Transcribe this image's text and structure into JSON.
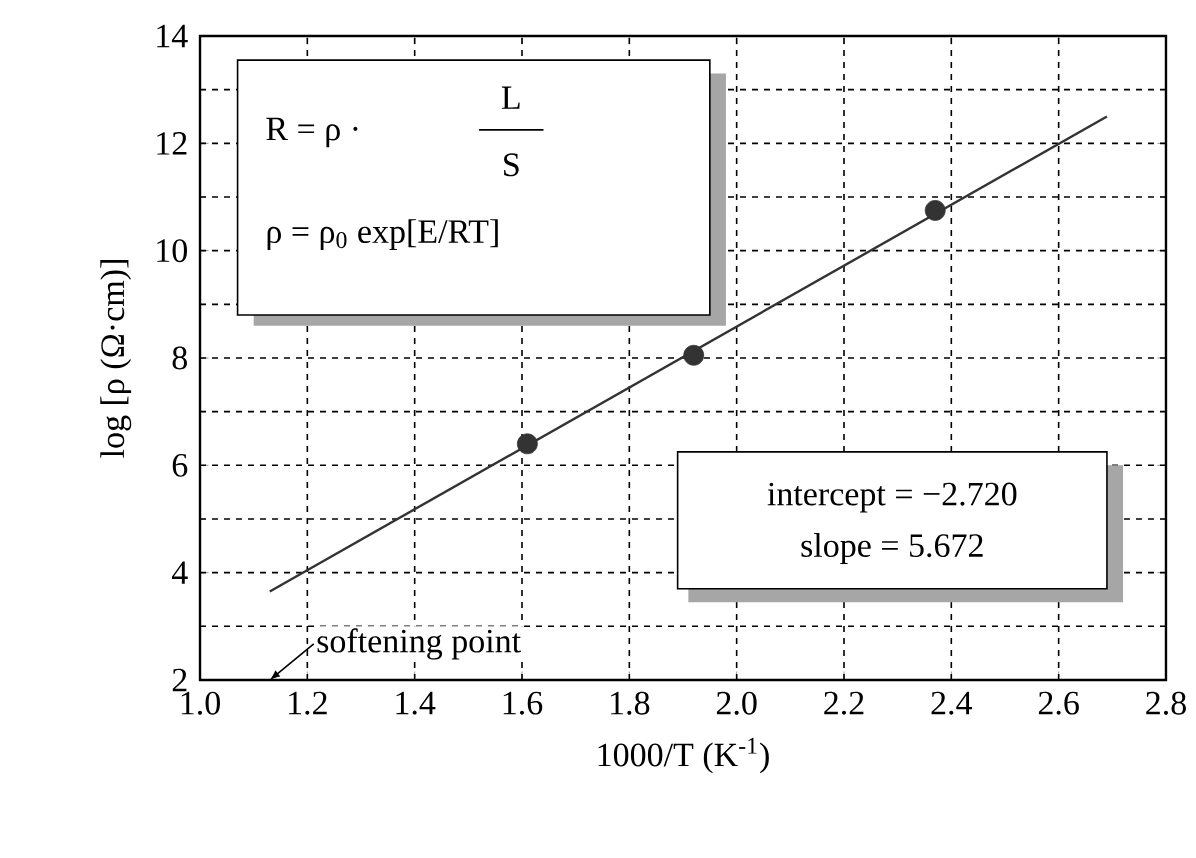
{
  "chart_data": {
    "type": "scatter",
    "xlabel": "1000/T (K$^{-1}$)",
    "ylabel": "log [ρ (Ω·cm)]",
    "xlim": [
      1.0,
      2.8
    ],
    "ylim": [
      2,
      14
    ],
    "xticks": [
      {
        "value": 1,
        "label": "1.0"
      },
      1.2,
      1.4,
      1.6,
      1.8,
      {
        "value": 2,
        "label": "2.0"
      },
      2.2,
      2.4,
      2.6,
      2.8
    ],
    "yticks": [
      2,
      4,
      6,
      8,
      10,
      12,
      14
    ],
    "grid": true,
    "series": [
      {
        "type": "scatter",
        "color": "#333333",
        "marker": "circle",
        "x": [
          1.61,
          1.92,
          2.37
        ],
        "values": [
          6.4,
          8.05,
          10.75
        ]
      },
      {
        "type": "line",
        "color": "#333333",
        "marker": "none",
        "line_style": "solid",
        "x": [
          1.13,
          2.69
        ],
        "values": [
          3.65,
          12.5
        ]
      }
    ],
    "annotations": [
      "R = ρ ·",
      "L",
      "S",
      "ρ = ρ$_{0}$ exp[E/RT]",
      "intercept = −2.720",
      "slope = 5.672",
      "softening point"
    ]
  }
}
